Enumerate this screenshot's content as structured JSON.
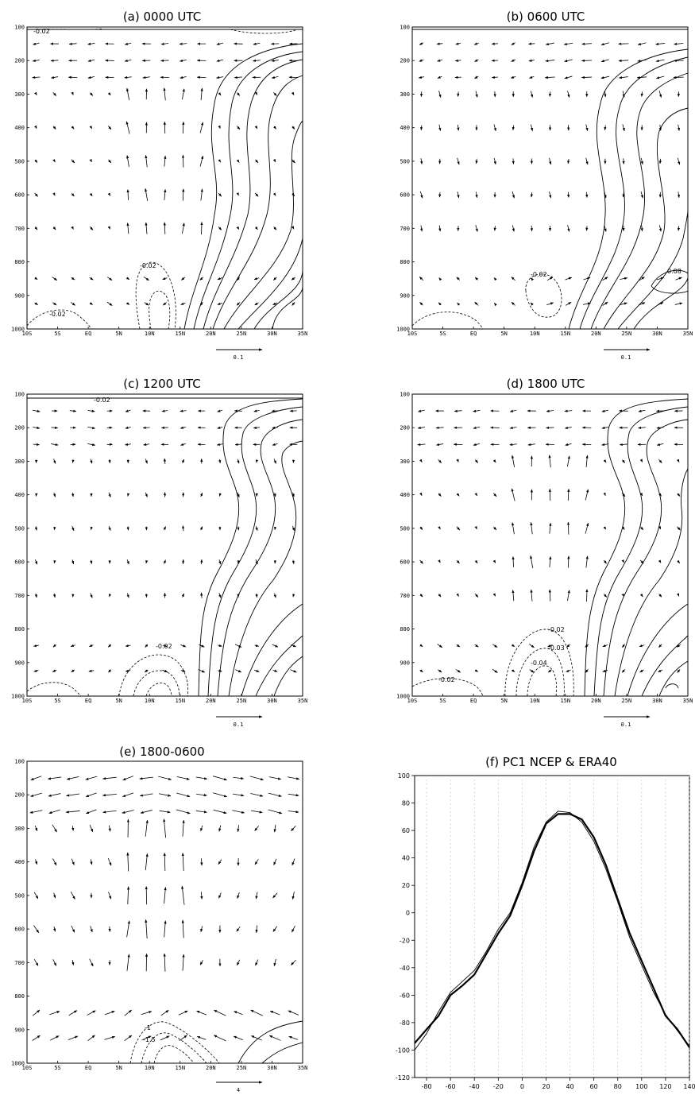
{
  "chart_data": [
    {
      "id": "a",
      "type": "vector-contour",
      "title": "(a) 0000 UTC",
      "x_ticks": [
        "10S",
        "5S",
        "EQ",
        "5N",
        "10N",
        "15N",
        "20N",
        "25N",
        "30N",
        "35N"
      ],
      "y_ticks": [
        "100",
        "200",
        "300",
        "400",
        "500",
        "600",
        "700",
        "800",
        "900",
        "1000"
      ],
      "xlim": [
        -10,
        35
      ],
      "ylim": [
        100,
        1000
      ],
      "y_inverted": true,
      "reference_vector": "0.1",
      "contour_labels": [
        "-0.02",
        "-0.02",
        "-0.02"
      ],
      "vector_pattern": "ascent"
    },
    {
      "id": "b",
      "type": "vector-contour",
      "title": "(b) 0600 UTC",
      "x_ticks": [
        "10S",
        "5S",
        "EQ",
        "5N",
        "10N",
        "15N",
        "20N",
        "25N",
        "30N",
        "35N"
      ],
      "y_ticks": [
        "100",
        "200",
        "300",
        "400",
        "500",
        "600",
        "700",
        "800",
        "900",
        "1000"
      ],
      "xlim": [
        -10,
        35
      ],
      "ylim": [
        100,
        1000
      ],
      "y_inverted": true,
      "reference_vector": "0.1",
      "contour_labels": [
        "-0.02",
        "0.08"
      ],
      "vector_pattern": "descent"
    },
    {
      "id": "c",
      "type": "vector-contour",
      "title": "(c) 1200 UTC",
      "x_ticks": [
        "10S",
        "5S",
        "EQ",
        "5N",
        "10N",
        "15N",
        "20N",
        "25N",
        "30N",
        "35N"
      ],
      "y_ticks": [
        "100",
        "200",
        "300",
        "400",
        "500",
        "600",
        "700",
        "800",
        "900",
        "1000"
      ],
      "xlim": [
        -10,
        35
      ],
      "ylim": [
        100,
        1000
      ],
      "y_inverted": true,
      "reference_vector": "0.1",
      "contour_labels": [
        "-0.02",
        "-0.02"
      ],
      "vector_pattern": "weak"
    },
    {
      "id": "d",
      "type": "vector-contour",
      "title": "(d) 1800 UTC",
      "x_ticks": [
        "10S",
        "5S",
        "EQ",
        "5N",
        "10N",
        "15N",
        "20N",
        "25N",
        "30N",
        "35N"
      ],
      "y_ticks": [
        "100",
        "200",
        "300",
        "400",
        "500",
        "600",
        "700",
        "800",
        "900",
        "1000"
      ],
      "xlim": [
        -10,
        35
      ],
      "ylim": [
        100,
        1000
      ],
      "y_inverted": true,
      "reference_vector": "0.1",
      "contour_labels": [
        "-0.02",
        "-0.03",
        "-0.04",
        "-0.02"
      ],
      "vector_pattern": "ascent"
    },
    {
      "id": "e",
      "type": "vector-contour",
      "title": "(e) 1800-0600",
      "x_ticks": [
        "10S",
        "5S",
        "EQ",
        "5N",
        "10N",
        "15N",
        "20N",
        "25N",
        "30N",
        "35N"
      ],
      "y_ticks": [
        "100",
        "200",
        "300",
        "400",
        "500",
        "600",
        "700",
        "800",
        "900",
        "1000"
      ],
      "xlim": [
        -10,
        35
      ],
      "ylim": [
        100,
        1000
      ],
      "y_inverted": true,
      "reference_vector": "4",
      "contour_labels": [
        "-1",
        "-1.5"
      ],
      "vector_pattern": "difference"
    },
    {
      "id": "f",
      "type": "line",
      "title": "(f) PC1 NCEP & ERA40",
      "x_ticks": [
        -80,
        -60,
        -40,
        -20,
        0,
        20,
        40,
        60,
        80,
        100,
        120,
        140
      ],
      "y_ticks": [
        100,
        80,
        60,
        40,
        20,
        0,
        -20,
        -40,
        -60,
        -80,
        -100,
        -120
      ],
      "xlim": [
        -90,
        140
      ],
      "ylim": [
        -120,
        100
      ],
      "grid_x": true,
      "series": [
        {
          "x": [
            -90,
            -80,
            -70,
            -60,
            -50,
            -40,
            -30,
            -20,
            -10,
            0,
            10,
            20,
            30,
            40,
            50,
            60,
            70,
            80,
            90,
            100,
            110,
            120,
            130,
            140
          ],
          "values": [
            -95,
            -85,
            -75,
            -60,
            -53,
            -45,
            -30,
            -15,
            -2,
            20,
            45,
            65,
            72,
            72,
            68,
            55,
            35,
            10,
            -15,
            -35,
            -55,
            -75,
            -85,
            -98
          ]
        },
        {
          "x": [
            -90,
            -80,
            -70,
            -60,
            -50,
            -40,
            -30,
            -20,
            -10,
            0,
            10,
            20,
            30,
            40,
            50,
            60,
            70,
            80,
            90,
            100,
            110,
            120,
            130,
            140
          ],
          "values": [
            -100,
            -88,
            -72,
            -58,
            -50,
            -42,
            -28,
            -12,
            0,
            22,
            48,
            66,
            74,
            73,
            66,
            52,
            32,
            8,
            -18,
            -38,
            -58,
            -74,
            -86,
            -97
          ]
        }
      ]
    }
  ]
}
